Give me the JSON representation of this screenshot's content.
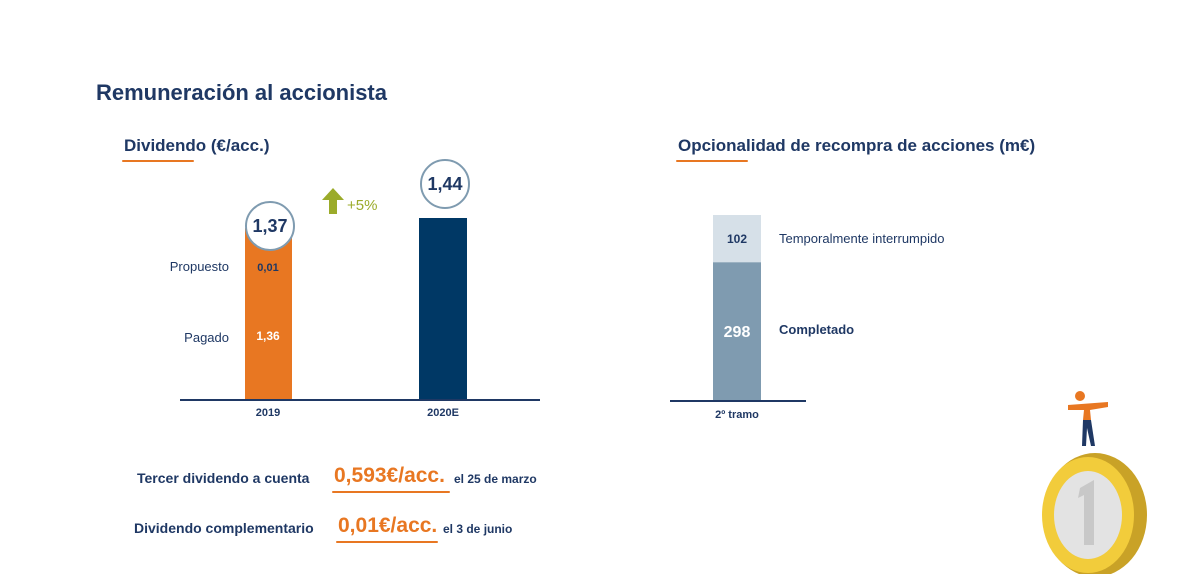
{
  "page": {
    "title": "Remuneración al accionista"
  },
  "colors": {
    "navy": "#1f3864",
    "orange": "#e87722",
    "olive": "#9bab2a",
    "bar_dark": "#003865",
    "bar_gray": "#7f9bb0",
    "bar_light": "#d6e0e8"
  },
  "chart_data": [
    {
      "type": "bar",
      "title": "Dividendo (€/acc.)",
      "categories": [
        "2019",
        "2020E"
      ],
      "series": [
        {
          "name": "Pagado",
          "values": [
            1.36,
            0
          ]
        },
        {
          "name": "Propuesto",
          "values": [
            0.01,
            0
          ]
        }
      ],
      "totals": [
        "1,37",
        "1,44"
      ],
      "total_values": [
        1.37,
        1.44
      ],
      "segment_labels": {
        "paid_2019": "1,36",
        "proposed_2019": "0,01"
      },
      "growth_label": "+5%",
      "ylim": [
        0,
        1.44
      ]
    },
    {
      "type": "bar",
      "title": "Opcionalidad de recompra de acciones (m€)",
      "categories": [
        "2º tramo"
      ],
      "series": [
        {
          "name": "Completado",
          "values": [
            298
          ]
        },
        {
          "name": "Temporalmente interrumpido",
          "values": [
            102
          ]
        }
      ],
      "ylim": [
        0,
        400
      ]
    }
  ],
  "dividends": [
    {
      "label": "Tercer dividendo a cuenta",
      "value": "0,593€/acc.",
      "date": "el 25 de marzo"
    },
    {
      "label": "Dividendo complementario",
      "value": "0,01€/acc.",
      "date": "el 3 de junio"
    }
  ]
}
